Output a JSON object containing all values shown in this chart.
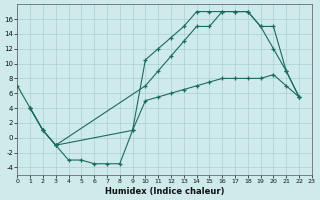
{
  "xlabel": "Humidex (Indice chaleur)",
  "background_color": "#ceeaea",
  "grid_color": "#aacfcf",
  "line_color": "#1a6b5e",
  "series": [
    {
      "x": [
        0,
        1,
        2,
        3,
        9,
        10,
        11,
        12,
        13,
        14,
        15,
        16,
        17,
        18,
        19,
        20,
        21,
        22
      ],
      "y": [
        7,
        4,
        1,
        -1,
        1,
        10.5,
        12,
        13.5,
        15,
        17,
        17,
        17,
        17,
        17,
        15,
        12,
        9,
        5.5
      ]
    },
    {
      "x": [
        1,
        2,
        3,
        4,
        5,
        6,
        7,
        8,
        9,
        10,
        11,
        12,
        13,
        14,
        15,
        16,
        17,
        18,
        19,
        20,
        21,
        22
      ],
      "y": [
        4,
        1,
        -1,
        -3,
        -3,
        -3.5,
        -3.5,
        -3.5,
        1,
        5,
        5.5,
        6,
        6.5,
        7,
        7.5,
        8,
        8,
        8,
        8,
        8.5,
        7,
        5.5
      ]
    },
    {
      "x": [
        1,
        2,
        3,
        10,
        11,
        12,
        13,
        14,
        15,
        16,
        17,
        18,
        19,
        20,
        21,
        22
      ],
      "y": [
        4,
        1,
        -1,
        7,
        9,
        11,
        13,
        15,
        15,
        17,
        17,
        17,
        15,
        15,
        9,
        5.5
      ]
    }
  ],
  "xlim": [
    0,
    23
  ],
  "ylim": [
    -5,
    18
  ],
  "yticks": [
    -4,
    -2,
    0,
    2,
    4,
    6,
    8,
    10,
    12,
    14,
    16
  ],
  "xticks": [
    0,
    1,
    2,
    3,
    4,
    5,
    6,
    7,
    8,
    9,
    10,
    11,
    12,
    13,
    14,
    15,
    16,
    17,
    18,
    19,
    20,
    21,
    22,
    23
  ]
}
